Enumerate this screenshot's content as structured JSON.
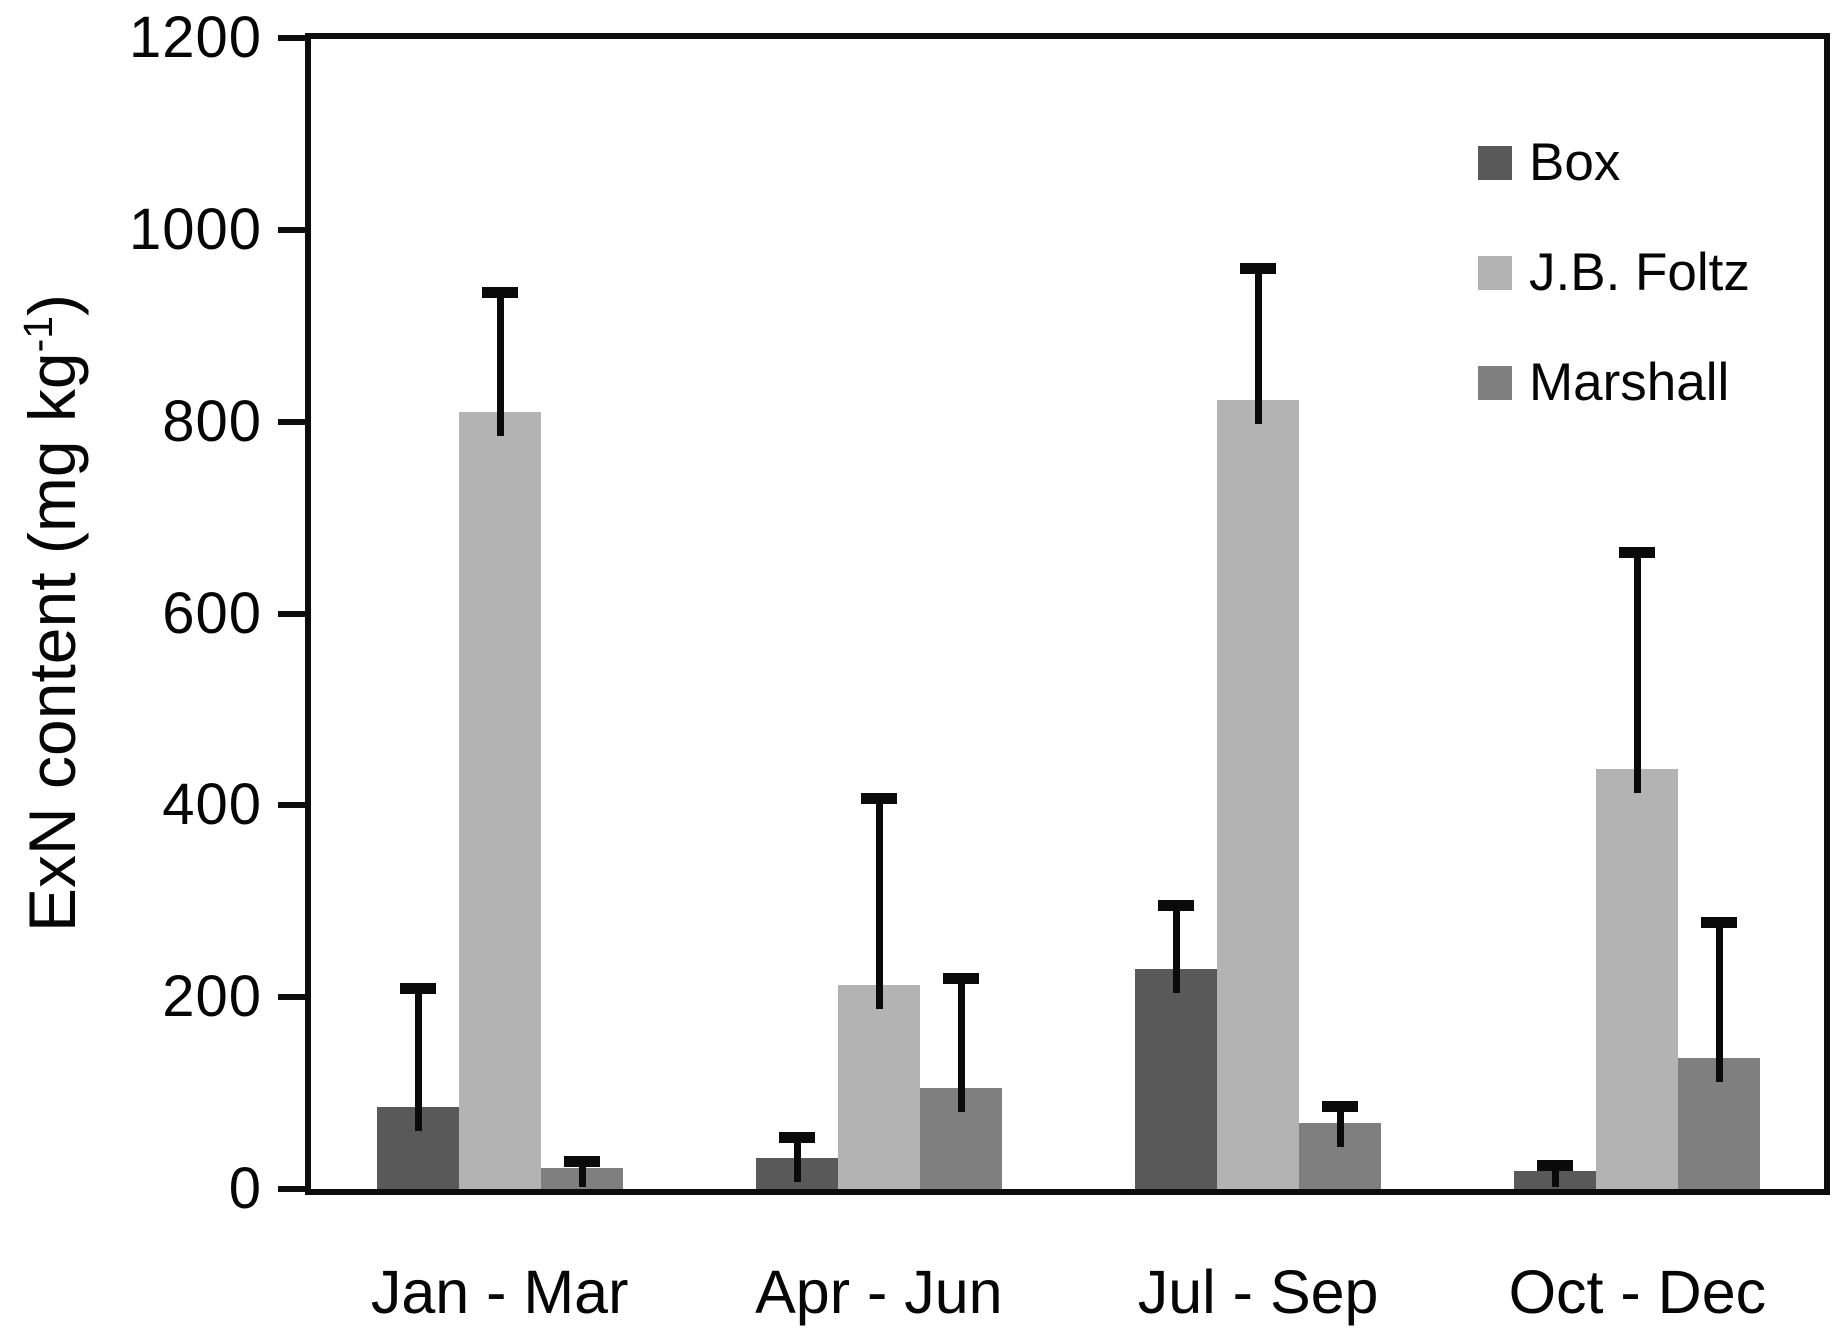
{
  "chart_data": {
    "type": "bar",
    "title": "",
    "ylabel": "ExN content (mg kg-1)",
    "ylabel_prefix": "ExN content (mg kg",
    "ylabel_sup": "-1",
    "ylabel_suffix": ")",
    "xlabel": "",
    "categories": [
      "Jan - Mar",
      "Apr - Jun",
      "Jul - Sep",
      "Oct - Dec"
    ],
    "series": [
      {
        "name": "Box",
        "color": "#595959",
        "values": [
          85,
          32,
          229,
          19
        ],
        "errors_upper": [
          130,
          27,
          72,
          11
        ]
      },
      {
        "name": "J.B. Foltz",
        "color": "#b3b3b3",
        "values": [
          810,
          213,
          823,
          438
        ],
        "errors_upper": [
          130,
          200,
          142,
          231
        ]
      },
      {
        "name": "Marshall",
        "color": "#7f7f7f",
        "values": [
          22,
          105,
          69,
          137
        ],
        "errors_upper": [
          12,
          120,
          23,
          147
        ]
      }
    ],
    "ylim": [
      0,
      1200
    ],
    "yticks": [
      0,
      200,
      400,
      600,
      800,
      1000,
      1200
    ],
    "grid": false,
    "legend_position": "top-right",
    "error_bars": "upper",
    "axis_color": "#0d0d0d",
    "background_color": "#ffffff"
  }
}
